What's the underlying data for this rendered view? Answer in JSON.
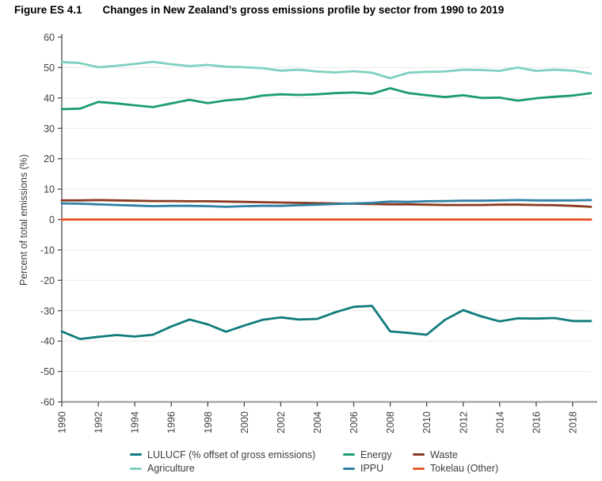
{
  "header": {
    "figure_label": "Figure ES 4.1",
    "title": "Changes in New Zealand’s gross emissions profile by sector from 1990 to 2019"
  },
  "chart_data": {
    "type": "line",
    "title": "Changes in New Zealand’s gross emissions profile by sector from 1990 to 2019",
    "xlabel": "",
    "ylabel": "Percent of total emissions (%)",
    "ylim": [
      -60,
      60
    ],
    "y_ticks": [
      60,
      50,
      40,
      30,
      20,
      10,
      0,
      -10,
      -20,
      -30,
      -40,
      -50,
      -60
    ],
    "x_range": [
      1990,
      2019
    ],
    "x_tick_labels": [
      "1990",
      "1992",
      "1994",
      "1996",
      "1998",
      "2000",
      "2002",
      "2004",
      "2006",
      "2008",
      "2010",
      "2012",
      "2014",
      "2016",
      "2018"
    ],
    "grid": true,
    "legend_position": "bottom",
    "x": [
      1990,
      1991,
      1992,
      1993,
      1994,
      1995,
      1996,
      1997,
      1998,
      1999,
      2000,
      2001,
      2002,
      2003,
      2004,
      2005,
      2006,
      2007,
      2008,
      2009,
      2010,
      2011,
      2012,
      2013,
      2014,
      2015,
      2016,
      2017,
      2018,
      2019
    ],
    "series": [
      {
        "name": "LULUCF (% offset of gross emissions)",
        "color": "#0f7b7c",
        "values": [
          -36.8,
          -39.3,
          -38.6,
          -38.0,
          -38.5,
          -37.9,
          -35.2,
          -32.9,
          -34.5,
          -36.9,
          -34.9,
          -33.0,
          -32.2,
          -32.9,
          -32.7,
          -30.5,
          -28.7,
          -28.4,
          -36.8,
          -37.3,
          -37.9,
          -33.0,
          -29.8,
          -31.9,
          -33.5,
          -32.5,
          -32.6,
          -32.4,
          -33.4,
          -33.4
        ]
      },
      {
        "name": "Agriculture",
        "color": "#7fd0c1",
        "values": [
          51.8,
          51.5,
          50.1,
          50.6,
          51.2,
          51.9,
          51.1,
          50.5,
          50.9,
          50.3,
          50.1,
          49.8,
          49.0,
          49.3,
          48.7,
          48.4,
          48.8,
          48.3,
          46.5,
          48.3,
          48.6,
          48.7,
          49.3,
          49.2,
          48.9,
          50.0,
          48.9,
          49.3,
          49.0,
          48.0
        ]
      },
      {
        "name": "Energy",
        "color": "#1b9b77",
        "values": [
          36.3,
          36.5,
          38.7,
          38.2,
          37.6,
          37.0,
          38.2,
          39.4,
          38.3,
          39.2,
          39.7,
          40.8,
          41.2,
          41.0,
          41.2,
          41.6,
          41.8,
          41.4,
          43.2,
          41.6,
          40.9,
          40.3,
          40.9,
          40.0,
          40.1,
          39.1,
          39.9,
          40.4,
          40.8,
          41.6
        ]
      },
      {
        "name": "IPPU",
        "color": "#2f80a4",
        "values": [
          5.3,
          5.2,
          5.0,
          4.8,
          4.6,
          4.4,
          4.5,
          4.5,
          4.4,
          4.2,
          4.4,
          4.5,
          4.5,
          4.7,
          4.9,
          5.1,
          5.3,
          5.5,
          5.9,
          5.8,
          6.0,
          6.1,
          6.2,
          6.2,
          6.3,
          6.4,
          6.3,
          6.3,
          6.3,
          6.4
        ]
      },
      {
        "name": "Waste",
        "color": "#8a3a20",
        "values": [
          6.3,
          6.3,
          6.4,
          6.3,
          6.2,
          6.1,
          6.1,
          6.0,
          6.0,
          5.9,
          5.8,
          5.7,
          5.6,
          5.5,
          5.4,
          5.3,
          5.2,
          5.1,
          5.0,
          5.0,
          4.9,
          4.8,
          4.8,
          4.8,
          4.9,
          4.9,
          4.8,
          4.7,
          4.5,
          4.2
        ]
      },
      {
        "name": "Tokelau (Other)",
        "color": "#e65c2e",
        "values": [
          0,
          0,
          0,
          0,
          0,
          0,
          0,
          0,
          0,
          0,
          0,
          0,
          0,
          0,
          0,
          0,
          0,
          0,
          0,
          0,
          0,
          0,
          0,
          0,
          0,
          0,
          0,
          0,
          0,
          0
        ]
      }
    ]
  },
  "legend": {
    "order": [
      0,
      1,
      2,
      3,
      4,
      5
    ]
  }
}
